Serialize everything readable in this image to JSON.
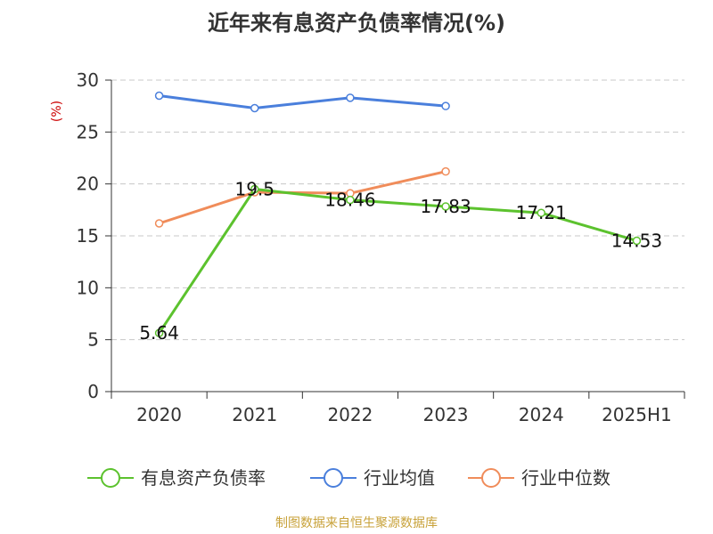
{
  "chart_data": {
    "type": "line",
    "title": "近年来有息资产负债率情况(%)",
    "ylabel": "(%)",
    "xlabel": "",
    "categories": [
      "2020",
      "2021",
      "2022",
      "2023",
      "2024",
      "2025H1"
    ],
    "ylim": [
      0,
      30
    ],
    "yticks": [
      0,
      5,
      10,
      15,
      20,
      25,
      30
    ],
    "grid": true,
    "legend_position": "bottom",
    "series": [
      {
        "name": "有息资产负债率",
        "color": "#5cc22e",
        "values": [
          5.64,
          19.5,
          18.46,
          17.83,
          17.21,
          14.53
        ],
        "labels": [
          "5.64",
          "19.5",
          "18.46",
          "17.83",
          "17.21",
          "14.53"
        ]
      },
      {
        "name": "行业均值",
        "color": "#4a7fdc",
        "values": [
          28.5,
          27.3,
          28.3,
          27.5,
          null,
          null
        ]
      },
      {
        "name": "行业中位数",
        "color": "#f08c5a",
        "values": [
          16.2,
          19.2,
          19.1,
          21.2,
          null,
          null
        ]
      }
    ]
  },
  "source_text": "制图数据来自恒生聚源数据库"
}
